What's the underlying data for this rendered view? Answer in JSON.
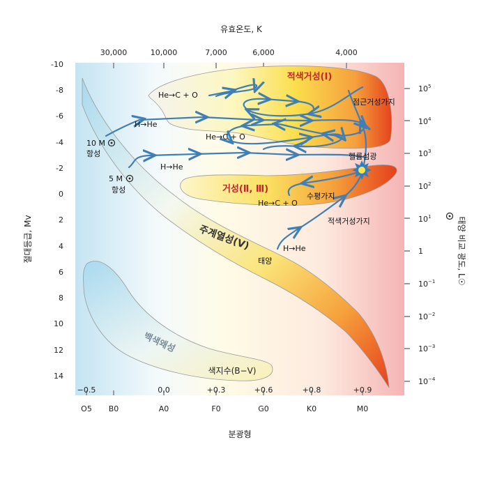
{
  "top_axis": {
    "title": "유효온도, K",
    "ticks": [
      "30,000",
      "10,000",
      "7,000",
      "6,000",
      "4,000"
    ]
  },
  "left_axis": {
    "title": "절대등급, Mv",
    "ticks": [
      "-10",
      "-8",
      "-6",
      "-4",
      "-2",
      "0",
      "2",
      "4",
      "6",
      "8",
      "10",
      "12",
      "14"
    ]
  },
  "right_axis": {
    "title": "태양 비교 광도, L☉",
    "ticks": [
      {
        "base": "10",
        "exp": "5"
      },
      {
        "base": "10",
        "exp": "4"
      },
      {
        "base": "10",
        "exp": "3"
      },
      {
        "base": "10",
        "exp": "2"
      },
      {
        "base": "10",
        "exp": "1"
      },
      {
        "base": "1",
        "exp": ""
      },
      {
        "base": "10",
        "exp": "−1"
      },
      {
        "base": "10",
        "exp": "−2"
      },
      {
        "base": "10",
        "exp": "−3"
      },
      {
        "base": "10",
        "exp": "−4"
      }
    ]
  },
  "bottom_axis": {
    "title": "분광형",
    "ticks": [
      "O5",
      "B0",
      "A0",
      "F0",
      "G0",
      "K0",
      "M0"
    ]
  },
  "color_index": {
    "label": "색지수(B−V)",
    "values": [
      "−0.5",
      "0.0",
      "+0.3",
      "+0.6",
      "+0.8",
      "+0.9"
    ]
  },
  "regions": {
    "supergiant": "적색거성(Ⅰ)",
    "giant": "거성(Ⅱ, Ⅲ)",
    "main_sequence": "주계열성(Ⅴ)",
    "white_dwarf": "백색왜성"
  },
  "annotations": {
    "he_c_o_1": "He→C + O",
    "he_c_o_2": "He→C + O",
    "he_c_o_3": "He→C + O",
    "h_he_1": "H→He",
    "h_he_2": "H→He",
    "h_he_3": "H→He",
    "agb": "점근거성가지",
    "horizontal_branch": "수평가지",
    "red_giant_branch": "적색거성가지",
    "helium_flash": "헬륨섬광",
    "sun": "태양",
    "star_10m_line1": "10 M",
    "star_10m_line2": "항성",
    "star_5m_line1": "5 M",
    "star_5m_line2": "항성"
  },
  "colors": {
    "track": "#3f7fb5",
    "region_title": "#c0262d",
    "axis": "#222222",
    "tick": "#9a9a9a"
  }
}
